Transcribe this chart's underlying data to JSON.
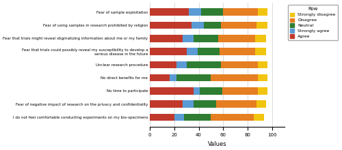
{
  "categories": [
    "Fear of sample exploitation",
    "Fear of using samples in research prohibited by religion",
    "Fear that trials might reveal stigmatizing information about me or my family",
    "Fear that trials could possibly reveal my susceptibility to develop a\nserious disease in the future",
    "Unclear research procedure",
    "No direct benefits for me",
    "No time to participate",
    "Fear of negative impact of research on the privacy and confidentiality",
    "I do not feel comfortable conducting experiments on my bio-specimens"
  ],
  "segments": {
    "Agree": [
      32,
      34,
      27,
      30,
      22,
      16,
      36,
      27,
      20
    ],
    "Strongly agree": [
      10,
      10,
      9,
      9,
      8,
      6,
      5,
      9,
      8
    ],
    "Neutral": [
      18,
      14,
      20,
      18,
      28,
      28,
      18,
      18,
      22
    ],
    "Disagree": [
      28,
      29,
      30,
      29,
      30,
      38,
      29,
      33,
      35
    ],
    "Strongly disagree": [
      8,
      9,
      9,
      9,
      8,
      8,
      8,
      8,
      8
    ]
  },
  "colors": {
    "Agree": "#c0392b",
    "Strongly agree": "#5b9bd5",
    "Neutral": "#2e7d32",
    "Disagree": "#e67e22",
    "Strongly disagree": "#f1c40f"
  },
  "draw_order": [
    "Agree",
    "Strongly agree",
    "Neutral",
    "Disagree",
    "Strongly disagree"
  ],
  "legend_order": [
    "Strongly disagree",
    "Disagree",
    "Neutral",
    "Strongly agree",
    "Agree"
  ],
  "xlabel": "Values",
  "xlim": [
    0,
    110
  ],
  "xticks": [
    0,
    20,
    40,
    60,
    80,
    100
  ],
  "legend_title": "Row",
  "background_color": "#ffffff",
  "bar_height": 0.55
}
